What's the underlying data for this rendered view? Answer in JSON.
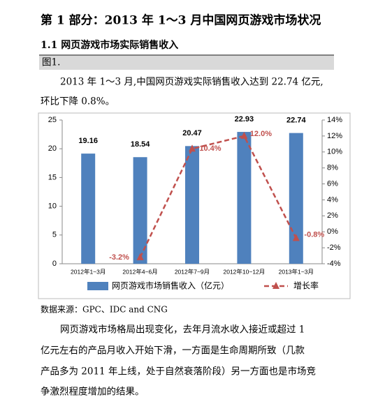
{
  "header": {
    "title": "第 1 部分：2013 年 1～3 月中国网页游戏市场状况",
    "subtitle": "1.1 网页游戏市场实际销售收入"
  },
  "figure_label": "图1.",
  "intro": [
    "2013 年 1～3 月,中国网页游戏实际销售收入达到 22.74 亿元,",
    "环比下降 0.8%。"
  ],
  "chart_data": {
    "type": "bar_line",
    "categories": [
      "2012年1~3月",
      "2012年4~6月",
      "2012年7~9月",
      "2012年10~12月",
      "2013年1~3月"
    ],
    "series": [
      {
        "name": "网页游戏市场销售收入（亿元）",
        "color": "#4f81bd",
        "values": [
          19.16,
          18.54,
          20.47,
          22.93,
          22.74
        ]
      },
      {
        "name": "增长率",
        "color": "#c0504d",
        "axis": "y2",
        "values": [
          null,
          -3.2,
          10.4,
          12.0,
          -0.8
        ],
        "value_labels": [
          null,
          "-3.2%",
          "10.4%",
          "12.0%",
          "-0.8%"
        ]
      }
    ],
    "ylim": [
      0,
      25
    ],
    "yticks": [
      0,
      5,
      10,
      15,
      20,
      25
    ],
    "y2lim": [
      -4,
      14
    ],
    "y2ticks": [
      {
        "value": -4,
        "label": "-4%"
      },
      {
        "value": -2,
        "label": "-2%"
      },
      {
        "value": 0,
        "label": "0%"
      },
      {
        "value": 2,
        "label": "2%"
      },
      {
        "value": 4,
        "label": "4%"
      },
      {
        "value": 6,
        "label": "6%"
      },
      {
        "value": 8,
        "label": "8%"
      },
      {
        "value": 10,
        "label": "10%"
      },
      {
        "value": 12,
        "label": "12%"
      },
      {
        "value": 14,
        "label": "14%"
      }
    ],
    "legend": "bottom"
  },
  "source": "数据来源：GPC、IDC and CNG",
  "body": [
    "网页游戏市场格局出现变化，去年月流水收入接近或超过 1",
    "亿元左右的产品月收入开始下滑，一方面是生命周期所致（几款",
    "产品多为 2011 年上线，处于自然衰落阶段）另一方面也是市场竞",
    "争激烈程度增加的结果。"
  ]
}
